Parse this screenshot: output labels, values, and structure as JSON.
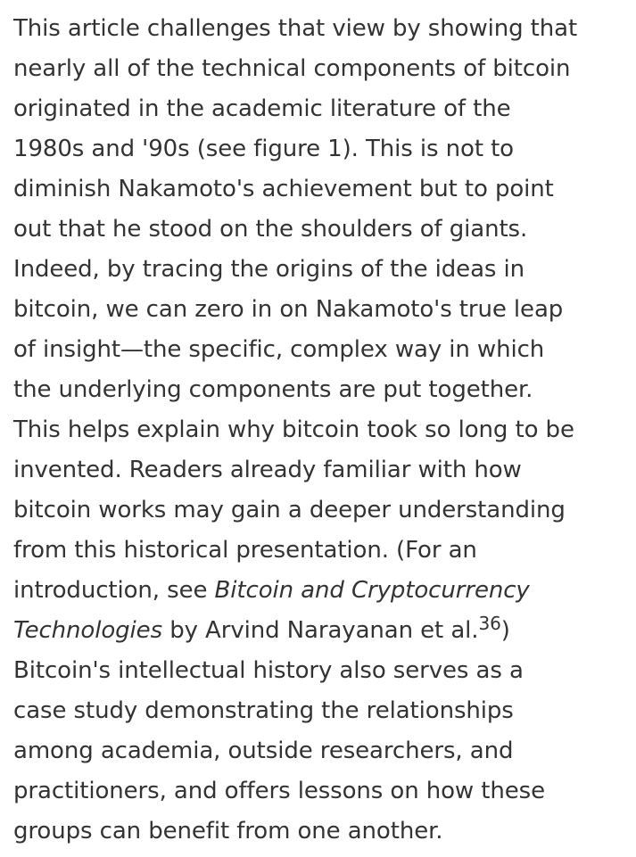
{
  "article": {
    "text_before_title": "This article challenges that view by showing that\nnearly all of the technical components of bitcoin\noriginated in the academic literature of the\n1980s and '90s (see figure 1). This is not to\ndiminish Nakamoto's achievement but to point\nout that he stood on the shoulders of giants.\nIndeed, by tracing the origins of the ideas in\nbitcoin, we can zero in on Nakamoto's true leap\nof insight—the specific, complex way in which\nthe underlying components are put together.\nThis helps explain why bitcoin took so long to be\ninvented. Readers already familiar with how\nbitcoin works may gain a deeper understanding\nfrom this historical presentation. (For an\nintroduction, see ",
    "book_title": "Bitcoin and Cryptocurrency\nTechnologies",
    "author_text": " by Arvind Narayanan et al.",
    "citation_number": "36",
    "text_after_citation": ")\nBitcoin's intellectual history also serves as a\ncase study demonstrating the relationships\namong academia, outside researchers, and\npractitioners, and offers lessons on how these\ngroups can benefit from one another."
  }
}
